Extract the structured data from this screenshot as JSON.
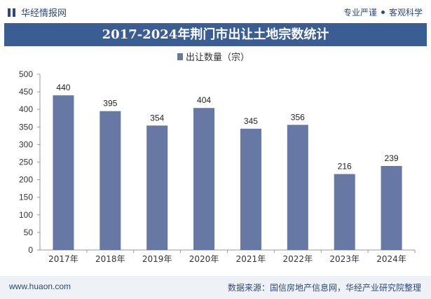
{
  "header": {
    "brand": "华经情报网",
    "slogan_left": "专业严谨",
    "slogan_right": "客观科学"
  },
  "footer": {
    "site": "www.huaon.com",
    "source": "数据来源：国信房地产信息网，华经产业研究院整理"
  },
  "colors": {
    "bar": "#6678a3",
    "title_bg": "#3a5d93",
    "brand": "#2b4a7a"
  },
  "chart_data": {
    "type": "bar",
    "title": "2017-2024年荆门市出让土地宗数统计",
    "categories": [
      "2017年",
      "2018年",
      "2019年",
      "2020年",
      "2021年",
      "2022年",
      "2023年",
      "2024年"
    ],
    "series": [
      {
        "name": "出让数量（宗）",
        "values": [
          440,
          395,
          354,
          404,
          345,
          356,
          216,
          239
        ]
      }
    ],
    "ylim": [
      0,
      500
    ],
    "yticks": [
      0,
      50,
      100,
      150,
      200,
      250,
      300,
      350,
      400,
      450,
      500
    ],
    "xlabel": "",
    "ylabel": "",
    "legend": "top-center",
    "grid": false
  }
}
